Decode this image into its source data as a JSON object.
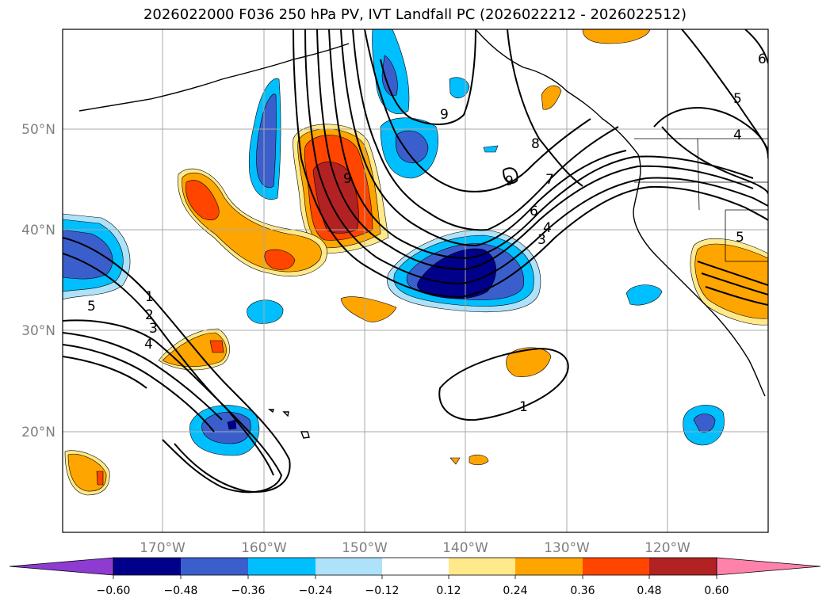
{
  "title": "2026022000 F036 250 hPa PV, IVT Landfall PC (2026022212 - 2026022512)",
  "map": {
    "lat_labels": [
      {
        "text": "50°N",
        "lat": 50
      },
      {
        "text": "40°N",
        "lat": 40
      },
      {
        "text": "30°N",
        "lat": 30
      },
      {
        "text": "20°N",
        "lat": 20
      }
    ],
    "lon_labels": [
      {
        "text": "170°W",
        "lon": -170
      },
      {
        "text": "160°W",
        "lon": -160
      },
      {
        "text": "150°W",
        "lon": -150
      },
      {
        "text": "140°W",
        "lon": -140
      },
      {
        "text": "130°W",
        "lon": -130
      },
      {
        "text": "120°W",
        "lon": -120
      }
    ],
    "contour_labels": [
      "1",
      "2",
      "3",
      "4",
      "5",
      "6",
      "7",
      "8",
      "9"
    ]
  },
  "colorbar": {
    "ticks": [
      "−0.60",
      "−0.48",
      "−0.36",
      "−0.24",
      "−0.12",
      "0.12",
      "0.24",
      "0.36",
      "0.48",
      "0.60"
    ],
    "colors": [
      "#8e3bd1",
      "#00008b",
      "#3a5fcd",
      "#00bfff",
      "#aee2fa",
      "#ffffff",
      "#ffe98a",
      "#ffa500",
      "#ff4500",
      "#b22222",
      "#ff82ab"
    ]
  }
}
